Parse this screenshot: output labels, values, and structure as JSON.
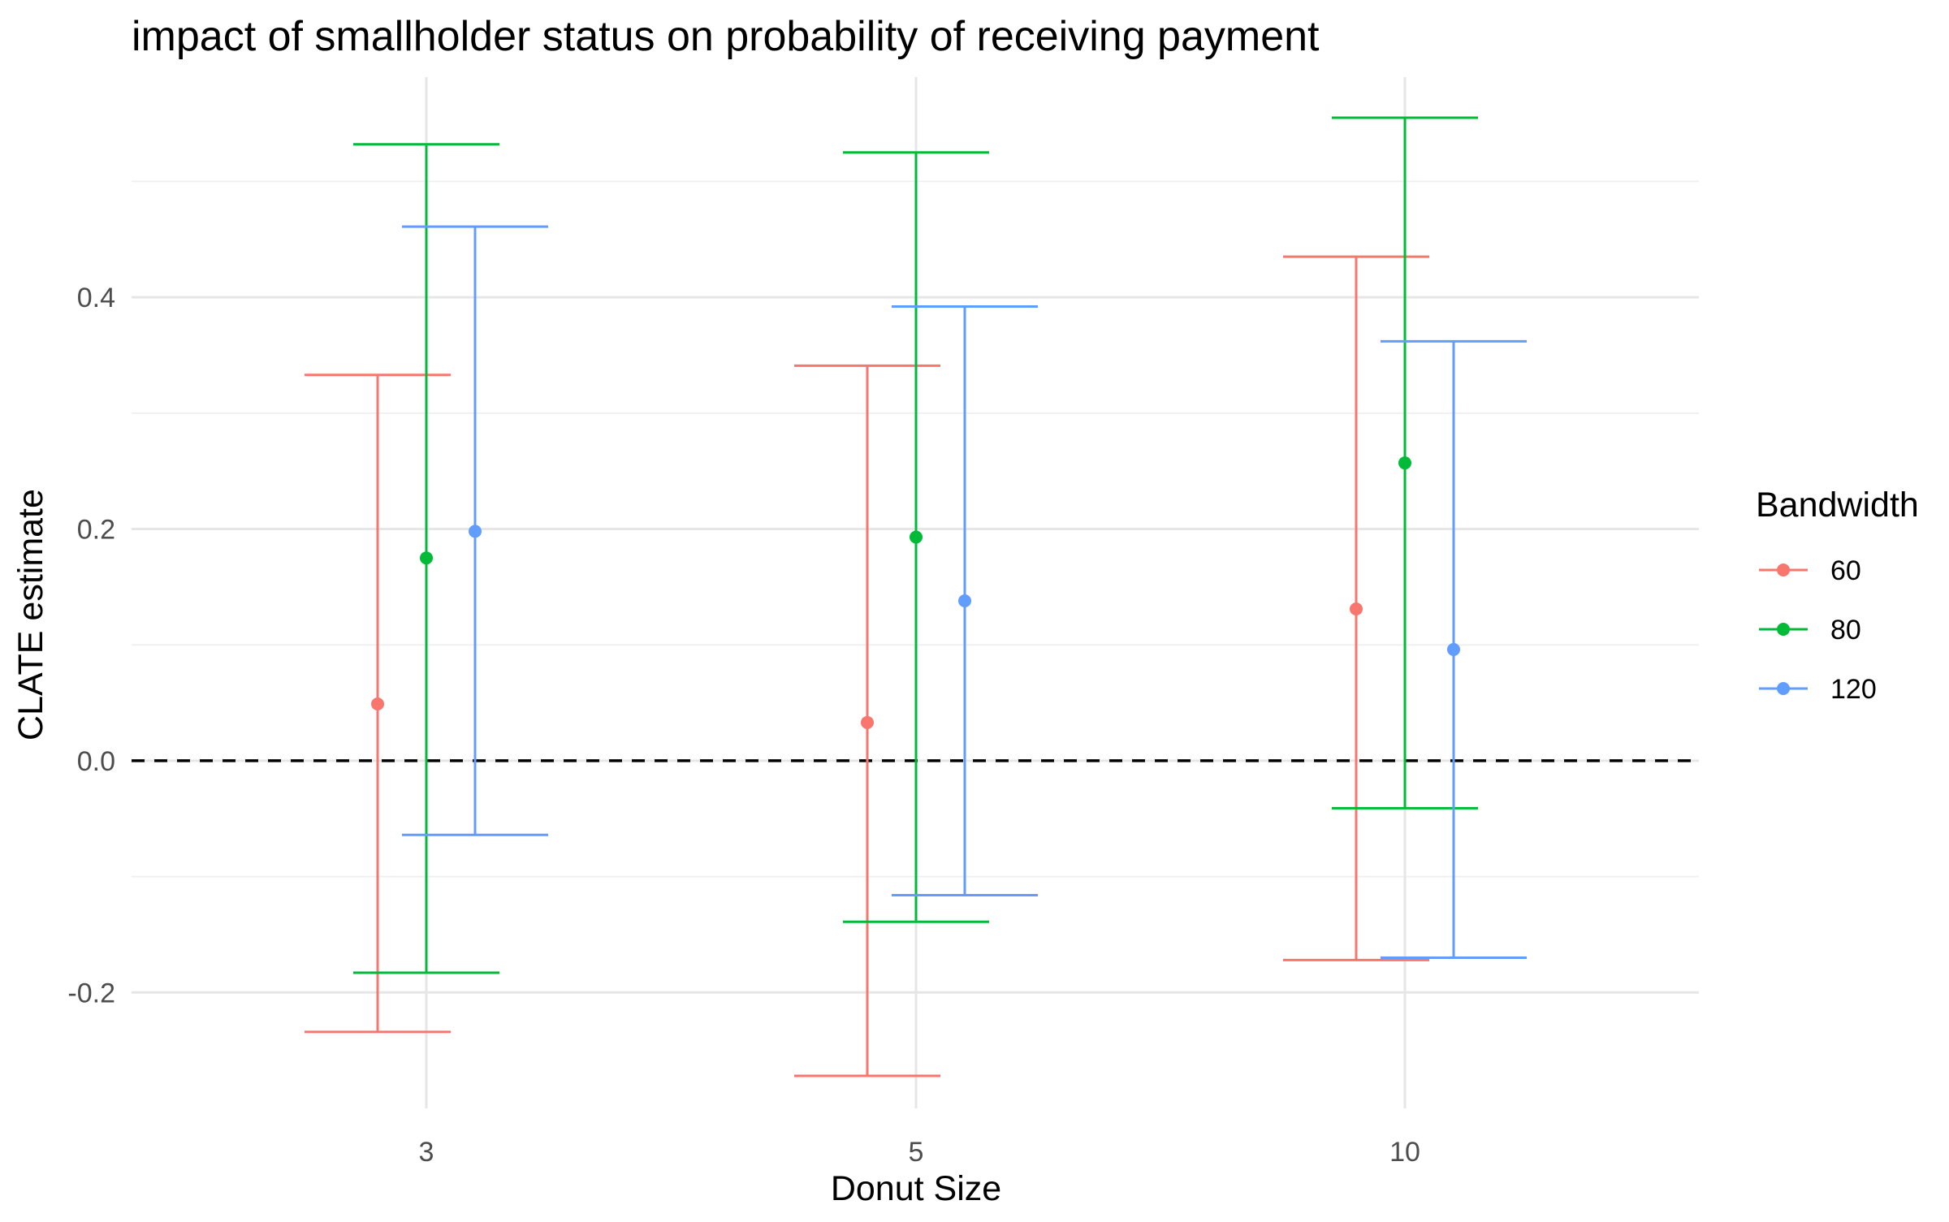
{
  "chart_data": {
    "type": "errorbar",
    "title": "impact of smallholder status on probability of receiving payment",
    "xlabel": "Donut Size",
    "ylabel": "CLATE estimate",
    "categories": [
      "3",
      "5",
      "10"
    ],
    "ylim": [
      -0.3,
      0.59
    ],
    "yticks": [
      -0.2,
      0.0,
      0.2,
      0.4
    ],
    "ytick_labels": [
      "-0.2",
      "0.0",
      "0.2",
      "0.4"
    ],
    "reference_line": {
      "y": 0.0,
      "style": "dashed",
      "color": "#000000"
    },
    "grid": true,
    "legend": {
      "title": "Bandwidth",
      "position": "right"
    },
    "series": [
      {
        "name": "60",
        "color": "#F8766D",
        "estimates": [
          0.049,
          0.033,
          0.131
        ],
        "lower": [
          -0.234,
          -0.272,
          -0.172
        ],
        "upper": [
          0.333,
          0.341,
          0.435
        ]
      },
      {
        "name": "80",
        "color": "#00BA38",
        "estimates": [
          0.175,
          0.193,
          0.257
        ],
        "lower": [
          -0.183,
          -0.139,
          -0.041
        ],
        "upper": [
          0.532,
          0.525,
          0.555
        ]
      },
      {
        "name": "120",
        "color": "#619CFF",
        "estimates": [
          0.198,
          0.138,
          0.096
        ],
        "lower": [
          -0.064,
          -0.116,
          -0.17
        ],
        "upper": [
          0.461,
          0.392,
          0.362
        ]
      }
    ]
  }
}
